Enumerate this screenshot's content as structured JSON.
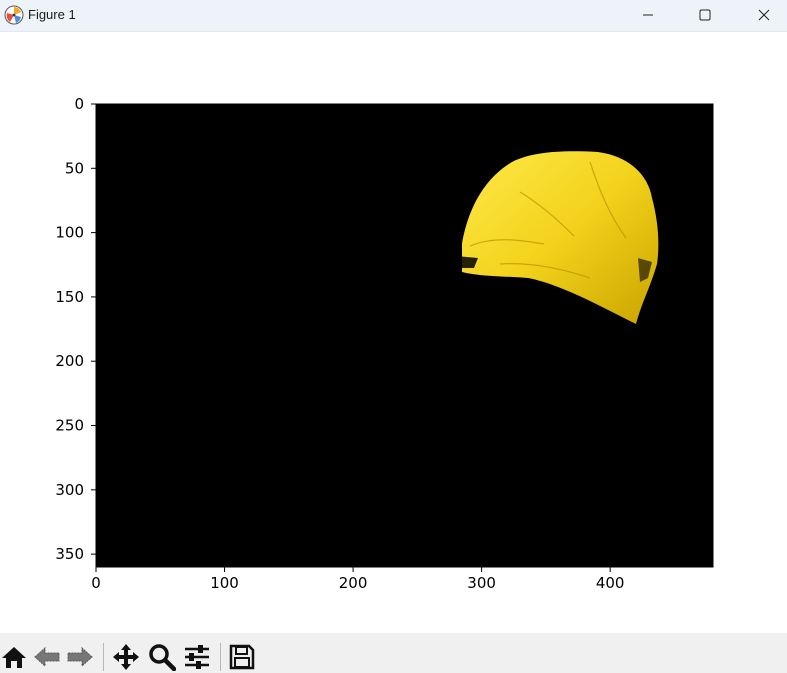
{
  "window": {
    "title": "Figure 1",
    "app_icon": "matplotlib-icon",
    "controls": [
      "minimize-icon",
      "maximize-icon",
      "close-icon"
    ]
  },
  "plot": {
    "image_description_colors": {
      "background": "#000000",
      "object": "#f2d21b"
    },
    "x_ticks": [
      "0",
      "100",
      "200",
      "300",
      "400"
    ],
    "y_ticks": [
      "0",
      "50",
      "100",
      "150",
      "200",
      "250",
      "300",
      "350"
    ],
    "x_range": [
      0,
      480
    ],
    "y_range": [
      0,
      360
    ]
  },
  "toolbar": {
    "tools": [
      {
        "name": "home-icon"
      },
      {
        "name": "back-icon"
      },
      {
        "name": "forward-icon"
      },
      {
        "name": "pan-icon"
      },
      {
        "name": "zoom-icon"
      },
      {
        "name": "configure-subplots-icon"
      },
      {
        "name": "save-icon"
      }
    ]
  }
}
